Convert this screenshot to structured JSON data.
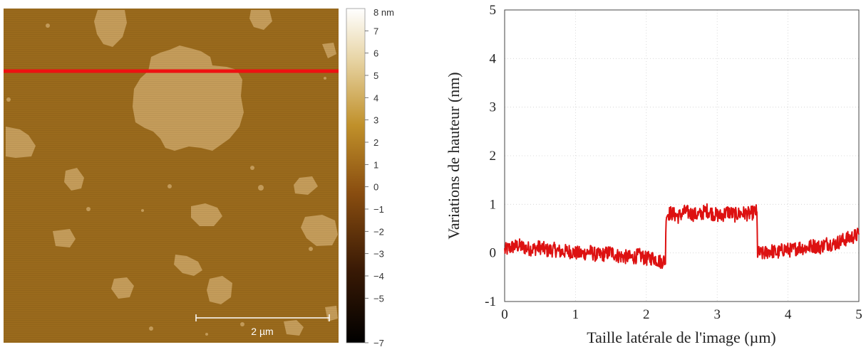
{
  "afm_image": {
    "scale_bar_label": "2 µm",
    "profile_line_color": "#ee1111",
    "substrate_color": "#9a6a1c",
    "island_color": "#c49c5a"
  },
  "colorbar": {
    "unit_label": "8 nm",
    "ticks": [
      "7",
      "6",
      "5",
      "4",
      "3",
      "2",
      "1",
      "0",
      "−1",
      "−2",
      "−3",
      "−4",
      "−5",
      "−7"
    ],
    "range": [
      -7,
      8
    ]
  },
  "chart_data": {
    "type": "line",
    "title": "",
    "xlabel": "Taille latérale de l'image (µm)",
    "ylabel": "Variations de hauteur (nm)",
    "xlim": [
      0,
      5
    ],
    "ylim": [
      -1,
      5
    ],
    "xticks": [
      "0",
      "1",
      "2",
      "3",
      "4",
      "5"
    ],
    "yticks": [
      "-1",
      "0",
      "1",
      "2",
      "3",
      "4",
      "5"
    ],
    "grid": true,
    "series": [
      {
        "color": "#dd1111",
        "x": [
          0.0,
          0.1,
          0.2,
          0.3,
          0.4,
          0.5,
          0.6,
          0.7,
          0.8,
          0.9,
          1.0,
          1.1,
          1.2,
          1.3,
          1.4,
          1.5,
          1.6,
          1.7,
          1.8,
          1.9,
          2.0,
          2.1,
          2.2,
          2.27,
          2.28,
          2.35,
          2.45,
          2.55,
          2.65,
          2.75,
          2.85,
          2.95,
          3.05,
          3.15,
          3.25,
          3.35,
          3.45,
          3.55,
          3.56,
          3.57,
          3.65,
          3.75,
          3.85,
          3.95,
          4.05,
          4.15,
          4.25,
          4.35,
          4.45,
          4.55,
          4.65,
          4.75,
          4.85,
          4.95,
          5.0
        ],
        "y": [
          0.05,
          0.12,
          0.15,
          0.1,
          0.08,
          0.12,
          0.05,
          0.07,
          0.02,
          0.04,
          0.0,
          -0.02,
          0.03,
          -0.05,
          -0.03,
          0.02,
          -0.06,
          -0.08,
          -0.1,
          -0.05,
          -0.12,
          -0.1,
          -0.18,
          -0.15,
          0.8,
          0.82,
          0.75,
          0.85,
          0.8,
          0.78,
          0.88,
          0.8,
          0.76,
          0.85,
          0.78,
          0.82,
          0.8,
          0.85,
          0.78,
          0.0,
          -0.02,
          0.05,
          0.0,
          0.08,
          0.05,
          0.12,
          0.1,
          0.15,
          0.12,
          0.2,
          0.18,
          0.25,
          0.3,
          0.35,
          0.38
        ]
      }
    ]
  }
}
